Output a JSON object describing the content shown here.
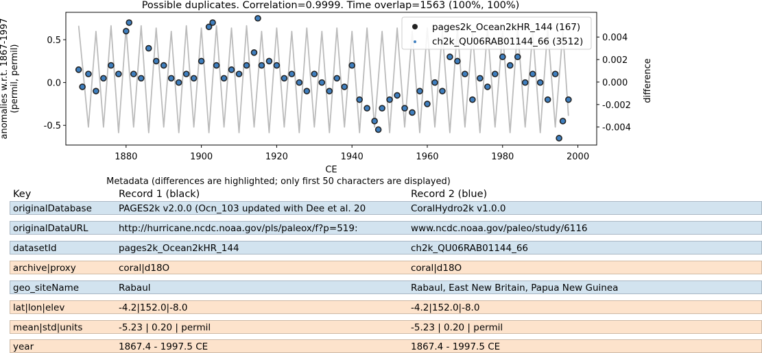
{
  "chart_data": {
    "type": "line",
    "title": "Possible duplicates. Correlation=0.9999. Time overlap=1563 (100%, 100%)",
    "xlabel": "CE",
    "ylabel_left": "anomalies w.r.t. 1867-1997 (permil, permil)",
    "ylabel_right": "difference",
    "xlim": [
      1864,
      2005
    ],
    "ylim_left": [
      -0.73,
      0.82
    ],
    "ylim_right": [
      -0.0056,
      0.0062
    ],
    "x_ticks": [
      "1880",
      "1900",
      "1920",
      "1940",
      "1960",
      "1980",
      "2000"
    ],
    "y_ticks_left": [
      "0.5",
      "0.0",
      "-0.5"
    ],
    "y_ticks_right": [
      "0.004",
      "0.002",
      "0.000",
      "-0.002",
      "-0.004"
    ],
    "legend_position": "top-right",
    "grid": false,
    "series": [
      {
        "name": "pages2k_Ocean2kHR_144 (167)",
        "marker": "o",
        "color": "#222222",
        "x": [
          1867.4,
          1868.4,
          1870,
          1872,
          1874,
          1876,
          1878,
          1880,
          1880.8,
          1882,
          1884,
          1886,
          1888,
          1890,
          1892,
          1894,
          1896,
          1898,
          1900,
          1902,
          1903,
          1904,
          1906,
          1908,
          1910,
          1912,
          1914,
          1915,
          1916,
          1918,
          1920,
          1922,
          1924,
          1926,
          1928,
          1930,
          1932,
          1934,
          1936,
          1938,
          1940,
          1942,
          1944,
          1946,
          1947,
          1948,
          1950,
          1952,
          1954,
          1956,
          1958,
          1960,
          1962,
          1964,
          1966,
          1968,
          1970,
          1972,
          1974,
          1976,
          1978,
          1980,
          1982,
          1984,
          1986,
          1988,
          1990,
          1992,
          1994,
          1995,
          1996,
          1997.5
        ],
        "y": [
          0.15,
          -0.05,
          0.1,
          -0.1,
          0.05,
          0.2,
          0.1,
          0.6,
          0.7,
          0.1,
          0.05,
          0.4,
          0.25,
          0.2,
          0.05,
          0.0,
          0.1,
          0.05,
          0.25,
          0.65,
          0.7,
          0.2,
          0.05,
          0.15,
          0.1,
          0.2,
          0.35,
          0.75,
          0.2,
          0.25,
          0.2,
          0.05,
          0.1,
          0.0,
          -0.1,
          0.1,
          0.0,
          -0.1,
          0.05,
          -0.05,
          0.2,
          -0.2,
          -0.3,
          -0.45,
          -0.55,
          -0.3,
          -0.2,
          -0.15,
          -0.3,
          -0.35,
          -0.1,
          -0.25,
          0.0,
          -0.1,
          0.3,
          0.25,
          0.1,
          -0.2,
          0.05,
          -0.05,
          0.1,
          0.3,
          0.2,
          0.3,
          0.0,
          0.1,
          0.0,
          -0.2,
          0.1,
          -0.65,
          -0.45,
          -0.2
        ]
      },
      {
        "name": "ch2k_QU06RAB01144_66 (3512)",
        "marker": ".",
        "color": "#3f7fbf",
        "x": [
          1867.4,
          1868.4,
          1870,
          1872,
          1874,
          1876,
          1878,
          1880,
          1880.8,
          1882,
          1884,
          1886,
          1888,
          1890,
          1892,
          1894,
          1896,
          1898,
          1900,
          1902,
          1903,
          1904,
          1906,
          1908,
          1910,
          1912,
          1914,
          1915,
          1916,
          1918,
          1920,
          1922,
          1924,
          1926,
          1928,
          1930,
          1932,
          1934,
          1936,
          1938,
          1940,
          1942,
          1944,
          1946,
          1947,
          1948,
          1950,
          1952,
          1954,
          1956,
          1958,
          1960,
          1962,
          1964,
          1966,
          1968,
          1970,
          1972,
          1974,
          1976,
          1978,
          1980,
          1982,
          1984,
          1986,
          1988,
          1990,
          1992,
          1994,
          1995,
          1996,
          1997.5
        ],
        "y": [
          0.15,
          -0.05,
          0.1,
          -0.1,
          0.05,
          0.2,
          0.1,
          0.6,
          0.7,
          0.1,
          0.05,
          0.4,
          0.25,
          0.2,
          0.05,
          0.0,
          0.1,
          0.05,
          0.25,
          0.65,
          0.7,
          0.2,
          0.05,
          0.15,
          0.1,
          0.2,
          0.35,
          0.75,
          0.2,
          0.25,
          0.2,
          0.05,
          0.1,
          0.0,
          -0.1,
          0.1,
          0.0,
          -0.1,
          0.05,
          -0.05,
          0.2,
          -0.2,
          -0.3,
          -0.45,
          -0.55,
          -0.3,
          -0.2,
          -0.15,
          -0.3,
          -0.35,
          -0.1,
          -0.25,
          0.0,
          -0.1,
          0.3,
          0.25,
          0.1,
          -0.2,
          0.05,
          -0.05,
          0.1,
          0.3,
          0.2,
          0.3,
          0.0,
          0.1,
          0.0,
          -0.2,
          0.1,
          -0.65,
          -0.45,
          -0.2
        ]
      },
      {
        "name": "difference",
        "axis": "right",
        "color": "#bbbbbb",
        "x": [
          1867.4,
          1870,
          1872,
          1874,
          1876,
          1878,
          1880,
          1882,
          1884,
          1886,
          1888,
          1890,
          1892,
          1894,
          1896,
          1898,
          1900,
          1902,
          1904,
          1906,
          1908,
          1910,
          1912,
          1914,
          1916,
          1918,
          1920,
          1922,
          1924,
          1926,
          1928,
          1930,
          1932,
          1934,
          1936,
          1938,
          1940,
          1942,
          1944,
          1946,
          1948,
          1950,
          1952,
          1954,
          1956,
          1958,
          1960,
          1962,
          1964,
          1966,
          1968,
          1970,
          1972,
          1974,
          1976,
          1978,
          1980,
          1982,
          1984,
          1986,
          1988,
          1990,
          1992,
          1994,
          1996,
          1997.5
        ],
        "y": [
          0.005,
          -0.004,
          0.0045,
          -0.004,
          0.005,
          -0.0045,
          0.0048,
          -0.004,
          0.005,
          -0.0045,
          0.0048,
          -0.004,
          0.0045,
          -0.0045,
          0.005,
          -0.004,
          0.0048,
          -0.0045,
          0.005,
          -0.004,
          0.0048,
          -0.0045,
          0.005,
          -0.004,
          0.0045,
          -0.0045,
          0.0048,
          -0.004,
          0.0045,
          -0.0045,
          0.0048,
          -0.004,
          0.0045,
          -0.0045,
          0.0048,
          -0.004,
          0.0045,
          -0.0045,
          0.0048,
          -0.004,
          0.0045,
          -0.0045,
          0.0048,
          -0.004,
          0.0045,
          -0.0045,
          0.0048,
          -0.004,
          0.0045,
          -0.0045,
          0.0048,
          -0.004,
          0.0045,
          -0.0045,
          0.0048,
          -0.004,
          0.0045,
          -0.0045,
          0.0048,
          -0.004,
          0.0045,
          -0.0045,
          0.0048,
          -0.004,
          0.0045,
          -0.003
        ]
      }
    ]
  },
  "metadata": {
    "caption": "Metadata (differences are highlighted; only first 50 characters are displayed)",
    "col_key": "Key",
    "col_r1": "Record 1 (black)",
    "col_r2": "Record 2 (blue)",
    "rows": [
      {
        "key": "originalDatabase",
        "r1": "PAGES2k v2.0.0 (Ocn_103 updated with Dee et al. 20",
        "r2": "CoralHydro2k v1.0.0",
        "differs": true
      },
      {
        "key": "originalDataURL",
        "r1": "http://hurricane.ncdc.noaa.gov/pls/paleox/f?p=519:",
        "r2": "www.ncdc.noaa.gov/paleo/study/6116",
        "differs": true
      },
      {
        "key": "datasetId",
        "r1": "pages2k_Ocean2kHR_144",
        "r2": "ch2k_QU06RAB01144_66",
        "differs": true
      },
      {
        "key": "archive|proxy",
        "r1": "coral|d18O",
        "r2": "coral|d18O",
        "differs": false
      },
      {
        "key": "geo_siteName",
        "r1": "Rabaul",
        "r2": "Rabaul, East New Britain, Papua New Guinea",
        "differs": true
      },
      {
        "key": "lat|lon|elev",
        "r1": "-4.2|152.0|-8.0",
        "r2": "-4.2|152.0|-8.0",
        "differs": false
      },
      {
        "key": "mean|std|units",
        "r1": "-5.23 | 0.20 | permil",
        "r2": "-5.23 | 0.20 | permil",
        "differs": false
      },
      {
        "key": "year",
        "r1": "1867.4 - 1997.5 CE",
        "r2": "1867.4 - 1997.5 CE",
        "differs": false
      }
    ]
  }
}
